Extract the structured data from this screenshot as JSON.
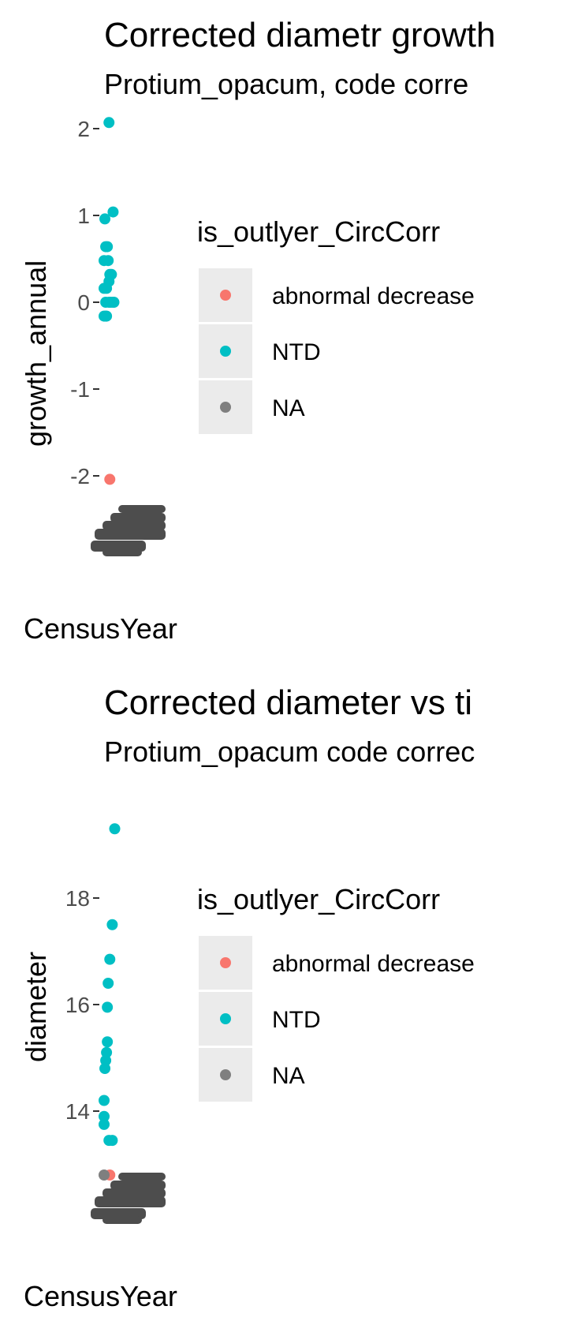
{
  "charts": [
    {
      "title": "Corrected diametr growth",
      "subtitle": "Protium_opacum, code corre",
      "legend_title": "is_outlyer_CircCorr",
      "legend": [
        {
          "label": "abnormal decrease",
          "color": "#f8766d"
        },
        {
          "label": "NTD",
          "color": "#00bfc4"
        },
        {
          "label": "NA",
          "color": "#7f7f7f"
        }
      ]
    },
    {
      "title": "Corrected diameter vs ti",
      "subtitle": "Protium_opacum code correc",
      "legend_title": "is_outlyer_CircCorr",
      "legend": [
        {
          "label": "abnormal decrease",
          "color": "#f8766d"
        },
        {
          "label": "NTD",
          "color": "#00bfc4"
        },
        {
          "label": "NA",
          "color": "#7f7f7f"
        }
      ]
    }
  ],
  "chart_data": [
    {
      "type": "scatter",
      "title": "Corrected diametr growth",
      "subtitle": "Protium_opacum, code corre",
      "xlabel": "CensusYear",
      "ylabel": "growth_annual",
      "ylim": [
        -2.3,
        2.2
      ],
      "yticks": [
        "2",
        "1",
        "0",
        "-1",
        "-2"
      ],
      "grid": false,
      "legend_position": "right",
      "series": [
        {
          "name": "NTD",
          "color": "#00bfc4",
          "points": [
            [
              0.06,
              2.07
            ],
            [
              0.11,
              1.04
            ],
            [
              0.01,
              0.96
            ],
            [
              0.02,
              0.64
            ],
            [
              0.04,
              0.64
            ],
            [
              0.0,
              0.48
            ],
            [
              0.05,
              0.48
            ],
            [
              0.07,
              0.32
            ],
            [
              0.09,
              0.32
            ],
            [
              0.06,
              0.24
            ],
            [
              0.0,
              0.16
            ],
            [
              0.03,
              0.16
            ],
            [
              0.02,
              0.0
            ],
            [
              0.06,
              0.0
            ],
            [
              0.08,
              0.0
            ],
            [
              0.11,
              0.0
            ],
            [
              0.12,
              0.0
            ],
            [
              0.0,
              -0.16
            ],
            [
              0.02,
              -0.16
            ],
            [
              0.03,
              -0.16
            ]
          ]
        },
        {
          "name": "abnormal decrease",
          "color": "#f8766d",
          "points": [
            [
              0.07,
              -2.04
            ]
          ]
        }
      ]
    },
    {
      "type": "scatter",
      "title": "Corrected diameter vs ti",
      "subtitle": "Protium_opacum code correc",
      "xlabel": "CensusYear",
      "ylabel": "diameter",
      "ylim": [
        12.4,
        19.9
      ],
      "yticks": [
        "18",
        "16",
        "14"
      ],
      "grid": false,
      "legend_position": "right",
      "series": [
        {
          "name": "NTD",
          "color": "#00bfc4",
          "points": [
            [
              0.13,
              19.3
            ],
            [
              0.1,
              17.5
            ],
            [
              0.07,
              16.85
            ],
            [
              0.05,
              16.4
            ],
            [
              0.04,
              15.95
            ],
            [
              0.04,
              15.3
            ],
            [
              0.03,
              15.1
            ],
            [
              0.02,
              14.95
            ],
            [
              0.01,
              14.8
            ],
            [
              0.0,
              14.2
            ],
            [
              0.0,
              13.9
            ],
            [
              0.0,
              13.75
            ],
            [
              0.06,
              13.45
            ],
            [
              0.1,
              13.45
            ]
          ]
        },
        {
          "name": "abnormal decrease",
          "color": "#f8766d",
          "points": [
            [
              0.07,
              12.8
            ]
          ]
        },
        {
          "name": "NA",
          "color": "#7f7f7f",
          "points": [
            [
              0.0,
              12.8
            ]
          ]
        }
      ]
    }
  ]
}
